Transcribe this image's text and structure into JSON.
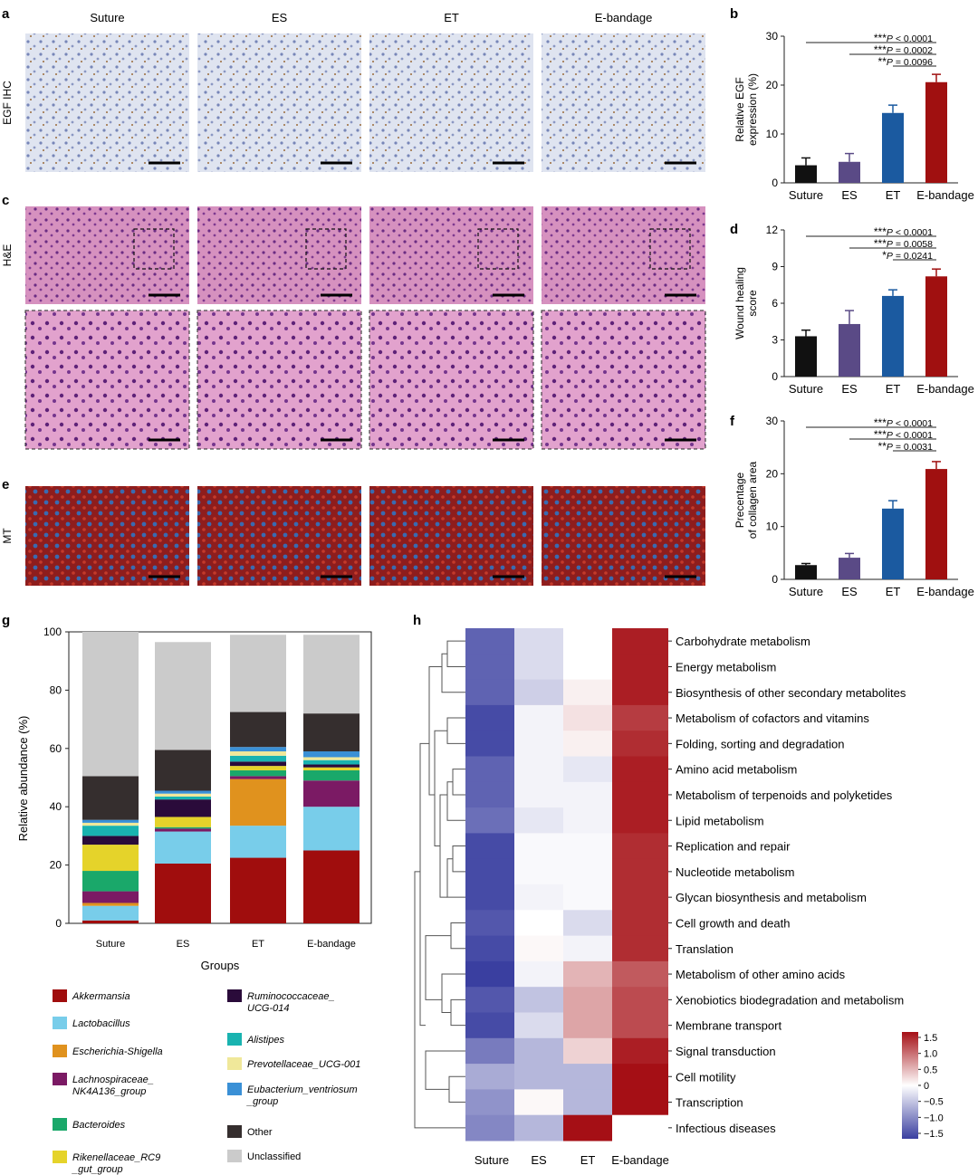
{
  "panels": {
    "a": "a",
    "b": "b",
    "c": "c",
    "d": "d",
    "e": "e",
    "f": "f",
    "g": "g",
    "h": "h"
  },
  "micrographs": {
    "columns": [
      "Suture",
      "ES",
      "ET",
      "E-bandage"
    ],
    "rows": [
      {
        "label": "EGF IHC",
        "kind": "ihc"
      },
      {
        "label": "H&E",
        "kind": "he"
      },
      {
        "label": "",
        "kind": "he_zoom"
      },
      {
        "label": "MT",
        "kind": "mt"
      }
    ]
  },
  "colors": {
    "suture": "#111111",
    "es": "#5a4a86",
    "et": "#1b5aa0",
    "ebandage": "#a01010"
  },
  "chart_data": [
    {
      "id": "b",
      "type": "bar",
      "ylabel": "Relative EGF expression (%)",
      "categories": [
        "Suture",
        "ES",
        "ET",
        "E-bandage"
      ],
      "values": [
        3.6,
        4.3,
        14.3,
        20.6
      ],
      "errors": [
        1.5,
        1.7,
        1.6,
        1.6
      ],
      "ylim": [
        0,
        30
      ],
      "yticks": [
        0,
        10,
        20,
        30
      ],
      "sig": [
        {
          "stars": "***",
          "text": "P < 0.0001",
          "from": 0
        },
        {
          "stars": "***",
          "text": "P = 0.0002",
          "from": 1
        },
        {
          "stars": "**",
          "text": "P = 0.0096",
          "from": 2
        }
      ]
    },
    {
      "id": "d",
      "type": "bar",
      "ylabel": "Wound healing score",
      "categories": [
        "Suture",
        "ES",
        "ET",
        "E-bandage"
      ],
      "values": [
        3.3,
        4.3,
        6.6,
        8.2
      ],
      "errors": [
        0.5,
        1.1,
        0.5,
        0.6
      ],
      "ylim": [
        0,
        12
      ],
      "yticks": [
        0,
        3,
        6,
        9,
        12
      ],
      "sig": [
        {
          "stars": "***",
          "text": "P < 0.0001",
          "from": 0
        },
        {
          "stars": "***",
          "text": "P = 0.0058",
          "from": 1
        },
        {
          "stars": "*",
          "text": "P = 0.0241",
          "from": 2
        }
      ]
    },
    {
      "id": "f",
      "type": "bar",
      "ylabel": "Precentage of collagen area",
      "categories": [
        "Suture",
        "ES",
        "ET",
        "E-bandage"
      ],
      "values": [
        2.7,
        4.1,
        13.4,
        20.9
      ],
      "errors": [
        0.3,
        0.8,
        1.5,
        1.4
      ],
      "ylim": [
        0,
        30
      ],
      "yticks": [
        0,
        10,
        20,
        30
      ],
      "sig": [
        {
          "stars": "***",
          "text": "P < 0.0001",
          "from": 0
        },
        {
          "stars": "***",
          "text": "P < 0.0001",
          "from": 1
        },
        {
          "stars": "**",
          "text": "P = 0.0031",
          "from": 2
        }
      ]
    },
    {
      "id": "g",
      "type": "bar",
      "stacked": true,
      "xlabel": "Groups",
      "ylabel": "Relative abundance (%)",
      "categories": [
        "Suture",
        "ES",
        "ET",
        "E-bandage"
      ],
      "ylim": [
        0,
        100
      ],
      "yticks": [
        0,
        20,
        40,
        60,
        80,
        100
      ],
      "series": [
        {
          "name": "Akkermansia",
          "italic": true,
          "color": "#a00d0d",
          "values": [
            1,
            20.5,
            22.5,
            25
          ]
        },
        {
          "name": "Lactobacillus",
          "italic": true,
          "color": "#78cdea",
          "values": [
            5,
            11,
            11,
            15
          ]
        },
        {
          "name": "Escherichia-Shigella",
          "italic": true,
          "color": "#e0921e",
          "values": [
            1,
            0,
            16,
            0
          ]
        },
        {
          "name": "Lachnospiraceae_ NK4A136_group",
          "italic": true,
          "color": "#7b1a64",
          "values": [
            4,
            1,
            1,
            9
          ]
        },
        {
          "name": "Bacteroides",
          "italic": true,
          "color": "#1aa86a",
          "values": [
            7,
            0.5,
            2,
            3.5
          ]
        },
        {
          "name": "Rikenellaceae_RC9 _gut_group",
          "italic": true,
          "color": "#e5d32a",
          "values": [
            9,
            3.5,
            1.5,
            1
          ]
        },
        {
          "name": "Ruminococcaceae_ UCG-014",
          "italic": true,
          "color": "#2a0b3a",
          "values": [
            3,
            6,
            1.5,
            1
          ]
        },
        {
          "name": "Alistipes",
          "italic": true,
          "color": "#19b3b0",
          "values": [
            3.5,
            1,
            2,
            1.5
          ]
        },
        {
          "name": "Prevotellaceae_UCG-001",
          "italic": true,
          "color": "#f0e89a",
          "values": [
            1,
            1,
            1.5,
            1
          ]
        },
        {
          "name": "Eubacterium_ventriosum _group",
          "italic": true,
          "color": "#3a90d6",
          "values": [
            1,
            1,
            1.5,
            2
          ]
        },
        {
          "name": "Other",
          "italic": false,
          "color": "#352e2e",
          "values": [
            15,
            14,
            12,
            13
          ]
        },
        {
          "name": "Unclassified",
          "italic": false,
          "color": "#cbcbcb",
          "values": [
            49.5,
            37,
            26.5,
            27
          ]
        }
      ]
    },
    {
      "id": "h",
      "type": "heatmap",
      "columns": [
        "Suture",
        "ES",
        "ET",
        "E-bandage"
      ],
      "rows": [
        "Carbohydrate metabolism",
        "Energy metabolism",
        "Biosynthesis of other secondary metabolites",
        "Metabolism of cofactors and vitamins",
        "Folding, sorting and degradation",
        "Amino acid metabolism",
        "Metabolism of terpenoids and polyketides",
        "Lipid metabolism",
        "Replication and repair",
        "Nucleotide metabolism",
        "Glycan biosynthesis and metabolism",
        "Cell growth and death",
        "Translation",
        "Metabolism of other amino acids",
        "Xenobiotics biodegradation and metabolism",
        "Membrane transport",
        "Signal transduction",
        "Cell motility",
        "Transcription",
        "Infectious diseases"
      ],
      "values": [
        [
          -1.3,
          -0.3,
          0.0,
          1.5
        ],
        [
          -1.3,
          -0.3,
          0.0,
          1.5
        ],
        [
          -1.3,
          -0.4,
          0.1,
          1.5
        ],
        [
          -1.5,
          -0.1,
          0.2,
          1.3
        ],
        [
          -1.5,
          -0.1,
          0.1,
          1.4
        ],
        [
          -1.3,
          -0.1,
          -0.2,
          1.5
        ],
        [
          -1.3,
          -0.1,
          -0.1,
          1.5
        ],
        [
          -1.2,
          -0.2,
          -0.1,
          1.5
        ],
        [
          -1.5,
          -0.05,
          -0.05,
          1.4
        ],
        [
          -1.5,
          -0.05,
          -0.05,
          1.4
        ],
        [
          -1.5,
          -0.1,
          -0.05,
          1.4
        ],
        [
          -1.4,
          0.0,
          -0.3,
          1.4
        ],
        [
          -1.5,
          0.05,
          -0.1,
          1.4
        ],
        [
          -1.6,
          -0.1,
          0.5,
          1.1
        ],
        [
          -1.4,
          -0.5,
          0.6,
          1.2
        ],
        [
          -1.5,
          -0.3,
          0.6,
          1.2
        ],
        [
          -1.1,
          -0.6,
          0.3,
          1.5
        ],
        [
          -0.7,
          -0.6,
          -0.6,
          1.7
        ],
        [
          -0.9,
          0.05,
          -0.6,
          1.6
        ],
        [
          -1.0,
          -0.6,
          1.6,
          0.0
        ]
      ],
      "colorbar": {
        "ticks": [
          "1.5",
          "1.0",
          "0.5",
          "0",
          "−0.5",
          "−1.0",
          "−1.5"
        ],
        "min": -1.5,
        "max": 1.5
      }
    }
  ]
}
